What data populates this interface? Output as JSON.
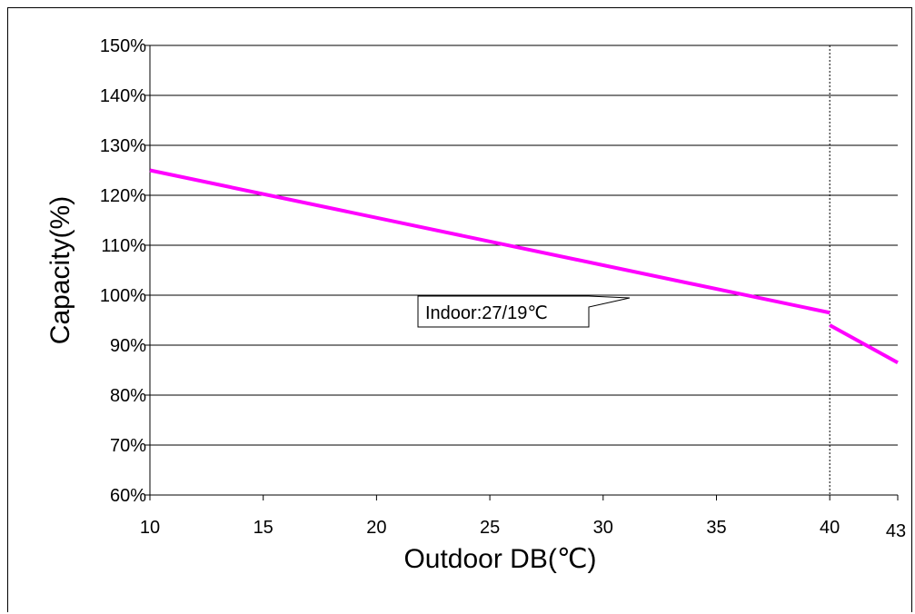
{
  "chart_data": {
    "type": "line",
    "title": "",
    "xlabel": "Outdoor DB(℃)",
    "ylabel": "Capacity(%)",
    "xlim": [
      10,
      43
    ],
    "ylim": [
      60,
      150
    ],
    "x_ticks": [
      10,
      15,
      20,
      25,
      30,
      35,
      40,
      43
    ],
    "x_tick_labels": [
      "10",
      "15",
      "20",
      "25",
      "30",
      "35",
      "40",
      "43"
    ],
    "y_ticks": [
      60,
      70,
      80,
      90,
      100,
      110,
      120,
      130,
      140,
      150
    ],
    "y_tick_labels": [
      "60%",
      "70%",
      "80%",
      "90%",
      "100%",
      "110%",
      "120%",
      "130%",
      "140%",
      "150%"
    ],
    "grid": true,
    "series": [
      {
        "segments": [
          {
            "x": [
              10,
              40
            ],
            "y": [
              125,
              96.5
            ]
          },
          {
            "x": [
              40,
              43
            ],
            "y": [
              94,
              86.5
            ]
          }
        ]
      }
    ],
    "reference_line_x": 40,
    "annotation": "Indoor:27/19℃",
    "colors": {
      "line": "#ff00ff",
      "grid": "#000000"
    }
  }
}
